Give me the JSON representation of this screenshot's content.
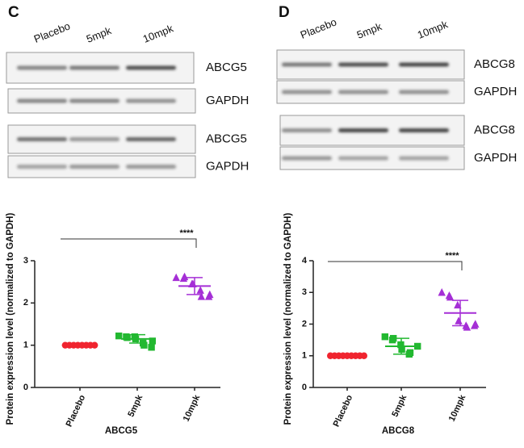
{
  "figure": {
    "panels": [
      {
        "letter": "C",
        "lanes": [
          "Placebo",
          "5mpk",
          "10mpk"
        ],
        "blot_labels": [
          "ABCG5",
          "GAPDH",
          "ABCG5",
          "GAPDH"
        ]
      },
      {
        "letter": "D",
        "lanes": [
          "Placebo",
          "5mpk",
          "10mpk"
        ],
        "blot_labels": [
          "ABCG8",
          "GAPDH",
          "ABCG8",
          "GAPDH"
        ]
      }
    ]
  },
  "chart_data": [
    {
      "type": "scatter",
      "x_label": "ABCG5",
      "y_label": "Protein expression level (normalized to GAPDH)",
      "categories": [
        "Placebo",
        "5mpk",
        "10mpk"
      ],
      "colors": [
        "#f0242f",
        "#22b830",
        "#a52fd6"
      ],
      "markers": [
        "circle",
        "square",
        "triangle"
      ],
      "points": [
        [
          1,
          1,
          1,
          1,
          1,
          1,
          1,
          1
        ],
        [
          1.22,
          1.2,
          1.18,
          1.2,
          1.15,
          1.05,
          1.0,
          0.95,
          1.1
        ],
        [
          2.6,
          2.58,
          2.62,
          2.45,
          2.45,
          2.3,
          2.15,
          2.15,
          2.2
        ]
      ],
      "means": [
        1,
        1.15,
        2.4
      ],
      "sds": [
        0,
        0.1,
        0.2
      ],
      "ylim": [
        0,
        3
      ],
      "yticks": [
        0,
        1,
        2,
        3
      ],
      "annotation": {
        "text": "****",
        "from": 0,
        "to": 2
      }
    },
    {
      "type": "scatter",
      "x_label": "ABCG8",
      "y_label": "Protein expression level (normalized to GAPDH)",
      "categories": [
        "Placebo",
        "5mpk",
        "10mpk"
      ],
      "colors": [
        "#f0242f",
        "#22b830",
        "#a52fd6"
      ],
      "markers": [
        "circle",
        "square",
        "triangle"
      ],
      "points": [
        [
          1,
          1,
          1,
          1,
          1,
          1,
          1,
          1,
          1
        ],
        [
          1.6,
          1.5,
          1.55,
          1.35,
          1.2,
          1.05,
          1.1,
          1.3
        ],
        [
          3.0,
          2.9,
          2.85,
          2.6,
          2.1,
          1.95,
          1.9,
          1.95,
          2.0
        ]
      ],
      "means": [
        1,
        1.3,
        2.35
      ],
      "sds": [
        0,
        0.25,
        0.4
      ],
      "ylim": [
        0,
        4
      ],
      "yticks": [
        0,
        1,
        2,
        3,
        4
      ],
      "annotation": {
        "text": "****",
        "from": 0,
        "to": 2
      }
    }
  ]
}
